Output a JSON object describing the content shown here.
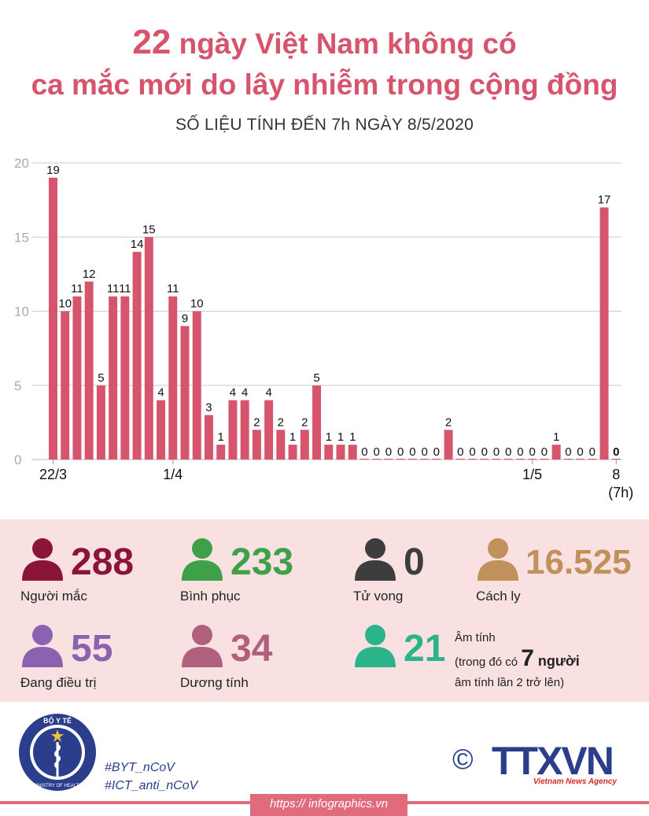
{
  "header": {
    "title_num": "22",
    "title_line1_rest": " ngày Việt Nam không có",
    "title_line2": "ca mắc mới do lây nhiễm trong cộng đồng",
    "subtitle": "SỐ LIỆU TÍNH ĐẾN 7h NGÀY 8/5/2020"
  },
  "chart_data": {
    "type": "bar",
    "title": "",
    "xlabel": "",
    "ylabel": "",
    "ylim": [
      0,
      20
    ],
    "yticks": [
      "0",
      "5",
      "10",
      "15",
      "20"
    ],
    "grid": true,
    "bar_color": "#d6546c",
    "categories": [
      "22/3",
      "23/3",
      "24/3",
      "25/3",
      "26/3",
      "27/3",
      "28/3",
      "29/3",
      "30/3",
      "31/3",
      "1/4",
      "2/4",
      "3/4",
      "4/4",
      "5/4",
      "6/4",
      "7/4",
      "8/4",
      "9/4",
      "10/4",
      "11/4",
      "12/4",
      "13/4",
      "14/4",
      "15/4",
      "16/4",
      "17/4",
      "18/4",
      "19/4",
      "20/4",
      "21/4",
      "22/4",
      "23/4",
      "24/4",
      "25/4",
      "26/4",
      "27/4",
      "28/4",
      "29/4",
      "30/4",
      "1/5",
      "2/5",
      "3/5",
      "4/5",
      "5/5",
      "6/5",
      "7/5",
      "8/5"
    ],
    "values": [
      19,
      10,
      11,
      12,
      5,
      11,
      11,
      14,
      15,
      4,
      11,
      9,
      10,
      3,
      1,
      4,
      4,
      2,
      4,
      2,
      1,
      2,
      5,
      1,
      1,
      1,
      0,
      0,
      0,
      0,
      0,
      0,
      0,
      2,
      0,
      0,
      0,
      0,
      0,
      0,
      0,
      0,
      1,
      0,
      0,
      0,
      17,
      0
    ],
    "value_labels": [
      "19",
      "10",
      "11",
      "12",
      "5",
      "11",
      "11",
      "14",
      "15",
      "4",
      "11",
      "9",
      "10",
      "3",
      "1",
      "4",
      "4",
      "2",
      "4",
      "2",
      "1",
      "2",
      "5",
      "1",
      "1",
      "1",
      "0",
      "0",
      "0",
      "0",
      "0",
      "0",
      "0",
      "2",
      "0",
      "0",
      "0",
      "0",
      "0",
      "0",
      "0",
      "0",
      "1",
      "0",
      "0",
      "0",
      "17",
      "0"
    ],
    "xtick_labels": [
      {
        "index": 0,
        "text": "22/3"
      },
      {
        "index": 10,
        "text": "1/4"
      },
      {
        "index": 40,
        "text": "1/5"
      },
      {
        "index": 47,
        "text": "8"
      }
    ],
    "last_tick_note": "(7h)"
  },
  "stats": [
    {
      "value": "288",
      "label": "Người mắc",
      "color": "#8b1538"
    },
    {
      "value": "233",
      "label": "Bình phục",
      "color": "#3fa04a"
    },
    {
      "value": "0",
      "label": "Tử vong",
      "color": "#3d3d3d"
    },
    {
      "value": "16.525",
      "label": "Cách ly",
      "color": "#c0915a"
    },
    {
      "value": "55",
      "label": "Đang điều trị",
      "color": "#8a63b0"
    },
    {
      "value": "34",
      "label": "Dương tính",
      "color": "#b0607c"
    },
    {
      "value": "21",
      "label": "",
      "color": "#2bb38a"
    }
  ],
  "negative_note": {
    "line1": "Âm tính",
    "line2_prefix": "(trong đó có ",
    "seven": "7",
    "nguoi": " người",
    "line3": "âm tính lần 2 trở lên)"
  },
  "footer": {
    "moh_top": "BỘ Y TẾ",
    "moh_bottom": "MINISTRY OF HEALTH",
    "hashtag1": "#BYT_nCoV",
    "hashtag2": "#ICT_anti_nCoV",
    "copyright": "©",
    "ttxvn": "TTXVN",
    "vna": "Vietnam News Agency",
    "url": "https:// infographics.vn"
  }
}
